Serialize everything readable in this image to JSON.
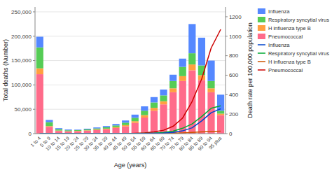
{
  "chart_data": {
    "type": "bar",
    "stacked": true,
    "grid": true,
    "legend": "right",
    "xlabel": "Age (years)",
    "ylabel": "Total deaths (Number)",
    "y2label": "Death rate per 100,000 population",
    "categories": [
      "1 to 4",
      "5 to 9",
      "10 to 14",
      "15 to 19",
      "20 to 24",
      "25 to 29",
      "30 to 34",
      "35 to 39",
      "40 to 44",
      "45 to 49",
      "50 to 54",
      "55 to 59",
      "60 to 64",
      "65 to 69",
      "70 to 74",
      "75 to 79",
      "80 to 84",
      "85 to 89",
      "90 to 94",
      "95 plus"
    ],
    "ylim": [
      0,
      260000
    ],
    "yticks": [
      0,
      {
        "value": 50000,
        "label": "50,000"
      },
      {
        "value": 100000,
        "label": "100,000"
      },
      {
        "value": 150000,
        "label": "150,000"
      },
      {
        "value": 200000,
        "label": "200,000"
      },
      {
        "value": 250000,
        "label": "250,000"
      }
    ],
    "y2lim": [
      0,
      1300
    ],
    "y2ticks": [
      0,
      200,
      400,
      600,
      800,
      1000,
      1200
    ],
    "series": [
      {
        "name": "Pneumococcal",
        "type": "bar",
        "color": "#FF6B8A",
        "values": [
          122000,
          14000,
          5500,
          4500,
          5000,
          6000,
          7500,
          9000,
          11500,
          15000,
          22000,
          33000,
          47000,
          60000,
          85000,
          108000,
          130000,
          110000,
          85000,
          38000
        ]
      },
      {
        "name": "H influenza type B",
        "type": "bar",
        "color": "#FFA040",
        "values": [
          12000,
          1500,
          800,
          600,
          700,
          800,
          1000,
          1200,
          1800,
          2500,
          3500,
          5000,
          6000,
          6500,
          8000,
          10000,
          12000,
          10000,
          8000,
          3000
        ]
      },
      {
        "name": "Respiratory syncytial virus",
        "type": "bar",
        "color": "#55CC55",
        "values": [
          43000,
          8000,
          3000,
          1800,
          1500,
          1800,
          2200,
          2800,
          3500,
          5000,
          7000,
          9000,
          11000,
          12000,
          15000,
          19000,
          23000,
          20000,
          15000,
          6000
        ]
      },
      {
        "name": "Influenza",
        "type": "bar",
        "color": "#5588FF",
        "values": [
          22000,
          4500,
          2000,
          1500,
          1000,
          1500,
          2000,
          2500,
          3000,
          4500,
          6500,
          9000,
          11000,
          12000,
          13000,
          17000,
          60000,
          57000,
          42000,
          33000
        ]
      },
      {
        "name": "Pneumococcal",
        "type": "line",
        "axis": "y2",
        "color": "#CC0000",
        "values": [
          0,
          0,
          0,
          0,
          0,
          0,
          0,
          0,
          0,
          0,
          3,
          8,
          18,
          35,
          75,
          160,
          330,
          560,
          880,
          1070
        ]
      },
      {
        "name": "H influenza type B",
        "type": "line",
        "axis": "y2",
        "color": "#CC5500",
        "values": [
          0,
          0,
          0,
          0,
          0,
          0,
          0,
          0,
          0,
          0,
          0,
          0.5,
          1.5,
          3,
          5,
          8,
          12,
          18,
          22,
          25
        ]
      },
      {
        "name": "Respiratory syncytial virus",
        "type": "line",
        "axis": "y2",
        "color": "#00AA33",
        "values": [
          0,
          0,
          0,
          0,
          0,
          0,
          0,
          0,
          0,
          0,
          1,
          3,
          6,
          12,
          25,
          55,
          100,
          175,
          260,
          285
        ]
      },
      {
        "name": "Influenza",
        "type": "line",
        "axis": "y2",
        "color": "#0044CC",
        "values": [
          0,
          0,
          0,
          0,
          0,
          0,
          0,
          0,
          0,
          0,
          0.5,
          1.5,
          3,
          6,
          12,
          28,
          60,
          130,
          215,
          255
        ]
      }
    ]
  }
}
